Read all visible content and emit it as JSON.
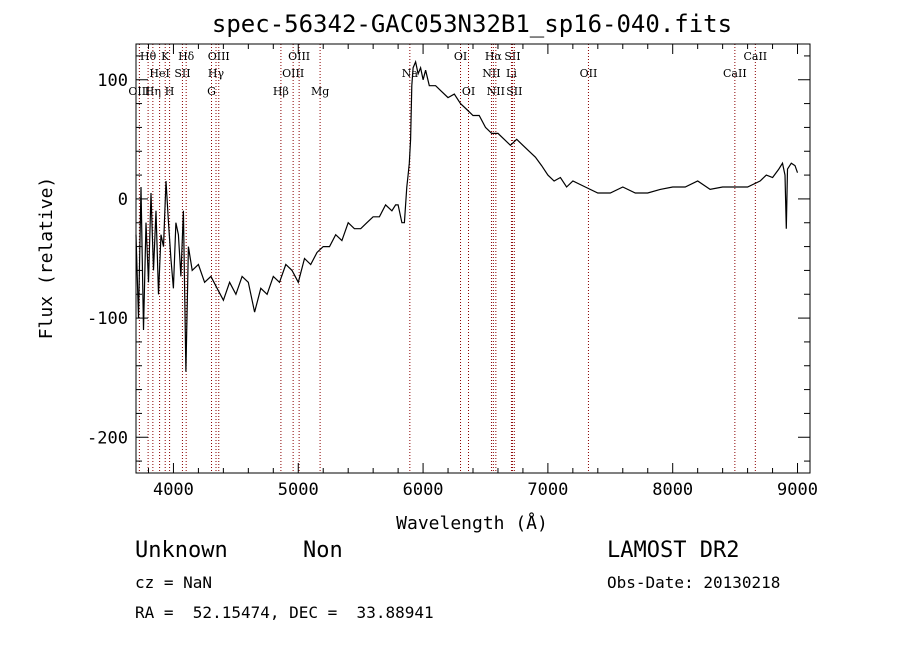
{
  "chart_data": {
    "type": "line",
    "title": "spec-56342-GAC053N32B1_sp16-040.fits",
    "xlabel": "Wavelength (Å)",
    "ylabel": "Flux (relative)",
    "xlim": [
      3700,
      9100
    ],
    "ylim": [
      -230,
      130
    ],
    "xticks": [
      4000,
      5000,
      6000,
      7000,
      8000,
      9000
    ],
    "yticks": [
      -200,
      -100,
      0,
      100
    ],
    "grid": false,
    "line_color": "#000000",
    "marker_color": "#8b0000",
    "series": [
      {
        "x": [
          3700,
          3720,
          3740,
          3760,
          3780,
          3800,
          3820,
          3840,
          3860,
          3880,
          3900,
          3920,
          3940,
          3960,
          3980,
          4000,
          4020,
          4040,
          4060,
          4080,
          4100,
          4120,
          4150,
          4200,
          4250,
          4300,
          4350,
          4400,
          4450,
          4500,
          4550,
          4600,
          4650,
          4700,
          4750,
          4800,
          4850,
          4900,
          4950,
          5000,
          5050,
          5100,
          5150,
          5200,
          5250,
          5300,
          5350,
          5400,
          5450,
          5500,
          5550,
          5600,
          5650,
          5700,
          5750,
          5780,
          5800,
          5830,
          5850,
          5870,
          5880,
          5890,
          5900,
          5910,
          5920,
          5940,
          5960,
          5980,
          6000,
          6020,
          6050,
          6100,
          6150,
          6200,
          6250,
          6300,
          6350,
          6400,
          6450,
          6500,
          6550,
          6600,
          6650,
          6700,
          6750,
          6800,
          6850,
          6900,
          6950,
          7000,
          7050,
          7100,
          7150,
          7200,
          7300,
          7400,
          7500,
          7600,
          7700,
          7800,
          7900,
          8000,
          8100,
          8200,
          8300,
          8400,
          8500,
          8600,
          8700,
          8750,
          8800,
          8850,
          8880,
          8900,
          8910,
          8920,
          8950,
          8980,
          9000
        ],
        "y": [
          -30,
          -100,
          10,
          -110,
          -20,
          -70,
          5,
          -60,
          -10,
          -80,
          -30,
          -40,
          15,
          -20,
          -50,
          -75,
          -20,
          -30,
          -65,
          -10,
          -145,
          -40,
          -60,
          -55,
          -70,
          -65,
          -75,
          -85,
          -70,
          -80,
          -65,
          -70,
          -95,
          -75,
          -80,
          -65,
          -70,
          -55,
          -60,
          -70,
          -50,
          -55,
          -45,
          -40,
          -40,
          -30,
          -35,
          -20,
          -25,
          -25,
          -20,
          -15,
          -15,
          -5,
          -10,
          -5,
          -5,
          -20,
          -20,
          10,
          20,
          30,
          50,
          95,
          110,
          115,
          105,
          110,
          100,
          108,
          95,
          95,
          90,
          85,
          88,
          80,
          75,
          70,
          70,
          60,
          55,
          55,
          50,
          45,
          50,
          45,
          40,
          35,
          28,
          20,
          15,
          18,
          10,
          15,
          10,
          5,
          5,
          10,
          5,
          5,
          8,
          10,
          10,
          15,
          8,
          10,
          10,
          10,
          15,
          20,
          18,
          25,
          30,
          20,
          -25,
          25,
          30,
          28,
          22
        ]
      }
    ],
    "lines": [
      {
        "name": "OIII",
        "x": 3727,
        "row": 3
      },
      {
        "name": "Hθ",
        "x": 3797,
        "row": 1
      },
      {
        "name": "Hη",
        "x": 3835,
        "row": 3
      },
      {
        "name": "HeI",
        "x": 3889,
        "row": 2
      },
      {
        "name": "K",
        "x": 3934,
        "row": 1
      },
      {
        "name": "H",
        "x": 3969,
        "row": 3
      },
      {
        "name": "SII",
        "x": 4072,
        "row": 2
      },
      {
        "name": "Hδ",
        "x": 4102,
        "row": 1
      },
      {
        "name": "G",
        "x": 4305,
        "row": 3
      },
      {
        "name": "Hγ",
        "x": 4341,
        "row": 2
      },
      {
        "name": "OIII",
        "x": 4363,
        "row": 1
      },
      {
        "name": "Hβ",
        "x": 4861,
        "row": 3
      },
      {
        "name": "OIII",
        "x": 4959,
        "row": 2
      },
      {
        "name": "OIII",
        "x": 5007,
        "row": 1
      },
      {
        "name": "Mg",
        "x": 5175,
        "row": 3
      },
      {
        "name": "Na",
        "x": 5894,
        "row": 2
      },
      {
        "name": "OI",
        "x": 6300,
        "row": 1
      },
      {
        "name": "OI",
        "x": 6364,
        "row": 3
      },
      {
        "name": "NII",
        "x": 6548,
        "row": 2
      },
      {
        "name": "Hα",
        "x": 6563,
        "row": 1
      },
      {
        "name": "NII",
        "x": 6583,
        "row": 3
      },
      {
        "name": "SII",
        "x": 6716,
        "row": 1
      },
      {
        "name": "Li",
        "x": 6708,
        "row": 2
      },
      {
        "name": "SII",
        "x": 6731,
        "row": 3
      },
      {
        "name": "OII",
        "x": 7325,
        "row": 2
      },
      {
        "name": "CaII",
        "x": 8498,
        "row": 2
      },
      {
        "name": "CaII",
        "x": 8662,
        "row": 1
      }
    ]
  },
  "info": {
    "class": "Unknown",
    "subclass": "Non",
    "survey": "LAMOST DR2",
    "cz": "cz = NaN",
    "obs_date": "Obs-Date: 20130218",
    "radec": "RA =  52.15474, DEC =  33.88941"
  }
}
